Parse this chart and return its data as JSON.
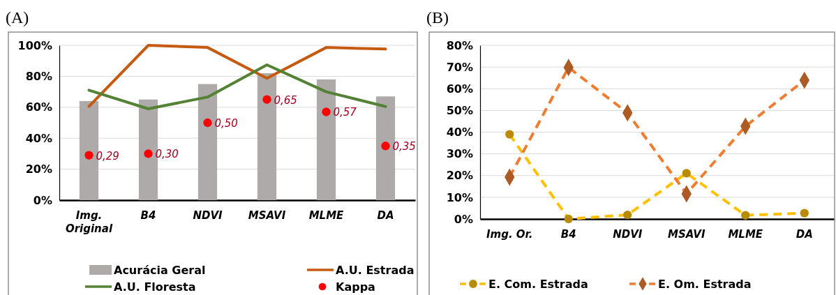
{
  "chart_data": [
    {
      "type": "bar",
      "title": "(A)",
      "categories": [
        "Img. Original",
        "B4",
        "NDVI",
        "MSAVI",
        "MLME",
        "DA"
      ],
      "ylim": [
        0,
        100
      ],
      "yticks": [
        {
          "value": 0,
          "label": "0%"
        },
        {
          "value": 20,
          "label": "20%"
        },
        {
          "value": 40,
          "label": "40%"
        },
        {
          "value": 60,
          "label": "60%"
        },
        {
          "value": 80,
          "label": "80%"
        },
        {
          "value": 100,
          "label": "100%"
        }
      ],
      "y2lim": [
        0,
        1
      ],
      "grid": "y",
      "legend": "bottom",
      "series": [
        {
          "name": "Acurácia Geral",
          "color": "#aeaaaa",
          "values": [
            64,
            65,
            75,
            82,
            78,
            67
          ]
        },
        {
          "name": "A.U. Estrada",
          "type": "line",
          "color": "#c55a11",
          "values": [
            60.5,
            100,
            98.6,
            78.7,
            98.6,
            97.6
          ]
        },
        {
          "name": "A.U. Floresta",
          "type": "line",
          "color": "#548235",
          "values": [
            71,
            59,
            66.6,
            87.4,
            70,
            60.5
          ]
        },
        {
          "name": "Kappa",
          "type": "scatter",
          "color": "#ff0000",
          "marker": "circle",
          "axis": "y2",
          "values": [
            0.29,
            0.3,
            0.5,
            0.65,
            0.57,
            0.35
          ],
          "value_labels": [
            "0,29",
            "0,30",
            "0,50",
            "0,65",
            "0,57",
            "0,35"
          ]
        }
      ]
    },
    {
      "type": "line",
      "title": "(B)",
      "categories": [
        "Img. Or.",
        "B4",
        "NDVI",
        "MSAVI",
        "MLME",
        "DA"
      ],
      "ylim": [
        0,
        80
      ],
      "yticks": [
        {
          "value": 0,
          "label": "0%"
        },
        {
          "value": 10,
          "label": "10%"
        },
        {
          "value": 20,
          "label": "20%"
        },
        {
          "value": 30,
          "label": "30%"
        },
        {
          "value": 40,
          "label": "40%"
        },
        {
          "value": 50,
          "label": "50%"
        },
        {
          "value": 60,
          "label": "60%"
        },
        {
          "value": 70,
          "label": "70%"
        },
        {
          "value": 80,
          "label": "80%"
        }
      ],
      "grid": "y",
      "legend": "bottom",
      "line_style": "dashed",
      "series": [
        {
          "name": "E. Com. Estrada",
          "color": "#ffc000",
          "marker": "circle",
          "values": [
            39,
            0,
            1.9,
            21.1,
            1.7,
            2.7
          ]
        },
        {
          "name": "E. Om. Estrada",
          "color": "#ed7d31",
          "marker": "diamond",
          "values": [
            19.3,
            69.8,
            48.9,
            11.6,
            42.7,
            63.9
          ]
        }
      ]
    }
  ]
}
